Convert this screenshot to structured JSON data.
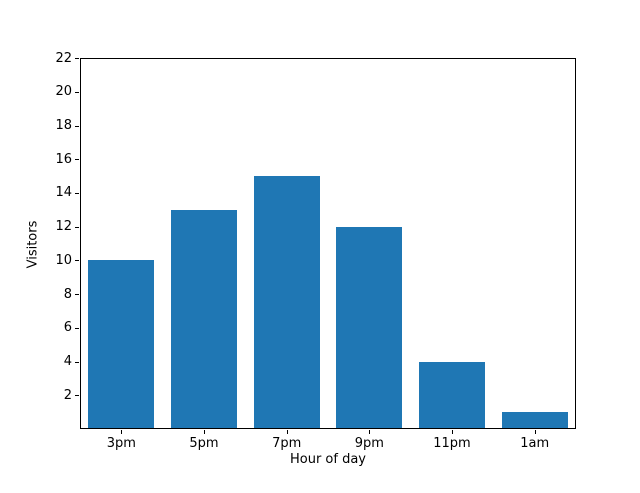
{
  "chart_data": {
    "type": "bar",
    "categories": [
      "3pm",
      "5pm",
      "7pm",
      "9pm",
      "11pm",
      "1am"
    ],
    "values": [
      10,
      13,
      15,
      12,
      4,
      1
    ],
    "title": "",
    "xlabel": "Hour of day",
    "ylabel": "Visitors",
    "ylim": [
      0,
      22
    ],
    "yticks": [
      2,
      4,
      6,
      8,
      10,
      12,
      14,
      16,
      18,
      20,
      22
    ],
    "bar_color": "#1f77b4",
    "bar_width_fraction": 0.8,
    "grid": false,
    "legend": null,
    "background_color": "#ffffff",
    "axis_color": "#000000",
    "text_color": "#000000"
  }
}
